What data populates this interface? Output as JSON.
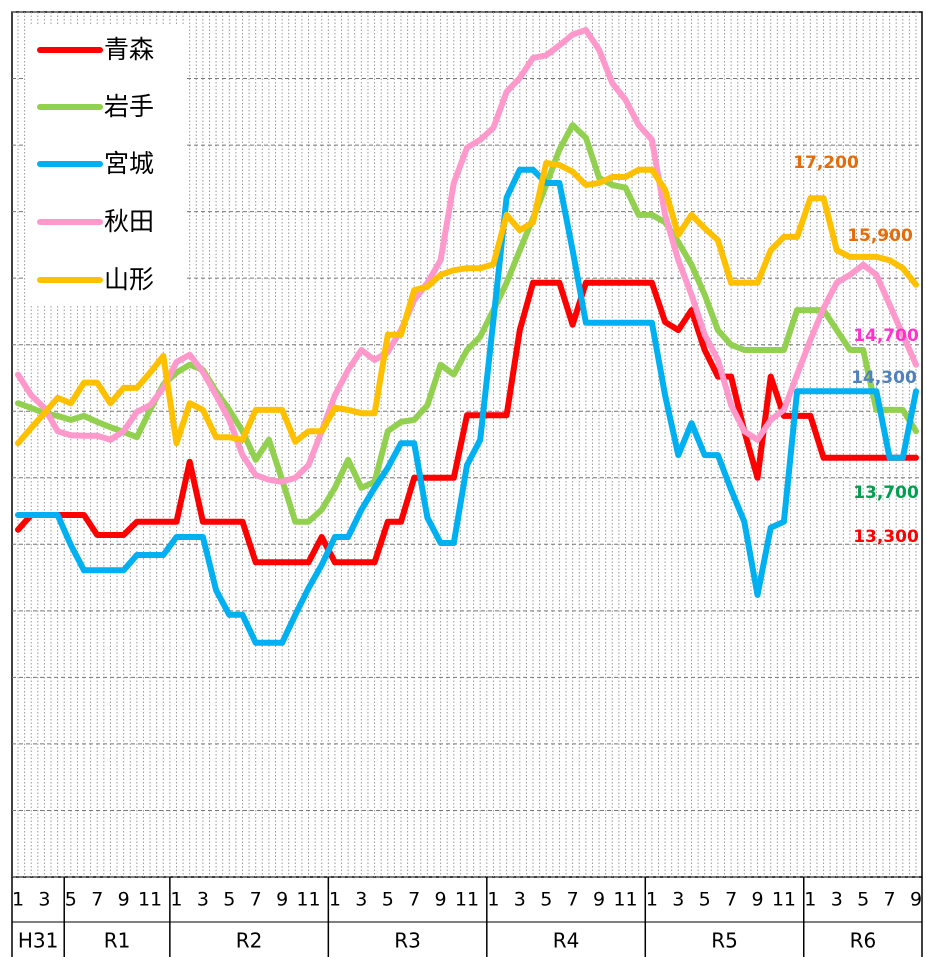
{
  "chart_data": {
    "type": "line",
    "categories": [
      "1",
      null,
      "3",
      null,
      "5",
      null,
      "7",
      null,
      "9",
      null,
      "11",
      null,
      "1",
      null,
      "3",
      null,
      "5",
      null,
      "7",
      null,
      "9",
      null,
      "11",
      null,
      "1",
      null,
      "3",
      null,
      "5",
      null,
      "7",
      null,
      "9",
      null,
      "11",
      null,
      "1",
      null,
      "3",
      null,
      "5",
      null,
      "7",
      null,
      "9",
      null,
      "11",
      null,
      "1",
      null,
      "3",
      null,
      "5",
      null,
      "7",
      null,
      "9",
      null,
      "11",
      null,
      "1",
      null,
      "3",
      null,
      "5",
      null,
      "7",
      null,
      "9"
    ],
    "eras": [
      {
        "label": "H31",
        "months": 4
      },
      {
        "label": "R1",
        "months": 8
      },
      {
        "label": "R2",
        "months": 12
      },
      {
        "label": "R3",
        "months": 12
      },
      {
        "label": "R4",
        "months": 12
      },
      {
        "label": "R5",
        "months": 12
      },
      {
        "label": "R6",
        "months": 9
      }
    ],
    "ylim": [
      7000,
      20000
    ],
    "yticks": [
      7000,
      8000,
      9000,
      10000,
      11000,
      12000,
      13000,
      14000,
      15000,
      16000,
      17000,
      18000,
      19000,
      20000
    ],
    "grid": true,
    "legend": "upper left",
    "series": [
      {
        "name": "青森",
        "color": "#ff0000",
        "values": [
          12220,
          12440,
          12440,
          12440,
          12440,
          12440,
          12140,
          12140,
          12140,
          12340,
          12340,
          12340,
          12340,
          13240,
          12340,
          12340,
          12340,
          12340,
          11730,
          11730,
          11730,
          11730,
          11730,
          12110,
          11730,
          11730,
          11730,
          11730,
          12340,
          12340,
          13000,
          13000,
          13000,
          13000,
          13940,
          13940,
          13940,
          13940,
          15220,
          15930,
          15930,
          15930,
          15300,
          15930,
          15930,
          15930,
          15930,
          15930,
          15930,
          15340,
          15220,
          15520,
          14920,
          14520,
          14520,
          13700,
          13000,
          14520,
          13930,
          13930,
          13930,
          13300,
          13300,
          13300,
          13300,
          13300,
          13300,
          13300,
          13300
        ]
      },
      {
        "name": "岩手",
        "color": "#92d050",
        "values": [
          14120,
          14050,
          13970,
          13930,
          13870,
          13930,
          13840,
          13760,
          13690,
          13610,
          14020,
          14400,
          14580,
          14700,
          14620,
          14300,
          14020,
          13700,
          13270,
          13570,
          12970,
          12340,
          12340,
          12520,
          12850,
          13270,
          12850,
          12940,
          13700,
          13840,
          13870,
          14090,
          14700,
          14550,
          14920,
          15120,
          15520,
          15930,
          16420,
          16900,
          17400,
          17930,
          18300,
          18110,
          17510,
          17400,
          17360,
          16950,
          16950,
          16840,
          16540,
          16200,
          15750,
          15220,
          15000,
          14920,
          14920,
          14920,
          14920,
          15520,
          15520,
          15520,
          15220,
          14920,
          14920,
          14020,
          14020,
          14020,
          13700
        ]
      },
      {
        "name": "宮城",
        "color": "#00b0f0",
        "values": [
          12440,
          12440,
          12440,
          12440,
          11990,
          11610,
          11610,
          11610,
          11610,
          11840,
          11840,
          11840,
          12110,
          12110,
          12110,
          11310,
          10940,
          10940,
          10520,
          10520,
          10520,
          10940,
          11340,
          11690,
          12110,
          12110,
          12520,
          12850,
          13150,
          13520,
          13520,
          12400,
          12020,
          12020,
          13190,
          13570,
          15370,
          17210,
          17630,
          17630,
          17430,
          17430,
          16420,
          15330,
          15330,
          15330,
          15330,
          15330,
          15330,
          14240,
          13340,
          13820,
          13340,
          13340,
          12820,
          12340,
          11240,
          12250,
          12340,
          14300,
          14300,
          14300,
          14300,
          14300,
          14300,
          14300,
          13300,
          13300,
          14300
        ]
      },
      {
        "name": "秋田",
        "color": "#ff99cc",
        "values": [
          14550,
          14240,
          14050,
          13700,
          13640,
          13630,
          13630,
          13570,
          13700,
          13990,
          14090,
          14350,
          14740,
          14850,
          14590,
          14240,
          13870,
          13340,
          13040,
          12970,
          12940,
          13000,
          13190,
          13700,
          14240,
          14620,
          14920,
          14770,
          14890,
          15220,
          15670,
          15930,
          16270,
          17430,
          17960,
          18080,
          18260,
          18800,
          19010,
          19310,
          19350,
          19500,
          19660,
          19730,
          19430,
          18930,
          18680,
          18300,
          18080,
          16950,
          16270,
          15750,
          15150,
          14770,
          14090,
          13700,
          13570,
          13870,
          14020,
          14550,
          15070,
          15550,
          15930,
          16050,
          16200,
          16050,
          15600,
          15150,
          14700
        ]
      },
      {
        "name": "山形",
        "color": "#ffc000",
        "values": [
          13520,
          13750,
          13970,
          14200,
          14120,
          14430,
          14430,
          14120,
          14350,
          14350,
          14580,
          14830,
          13520,
          14120,
          14020,
          13610,
          13610,
          13570,
          14020,
          14020,
          14020,
          13540,
          13700,
          13700,
          14050,
          14020,
          13970,
          13970,
          15150,
          15150,
          15820,
          15870,
          16050,
          16120,
          16150,
          16150,
          16210,
          16950,
          16720,
          16840,
          17730,
          17700,
          17600,
          17400,
          17430,
          17520,
          17520,
          17630,
          17630,
          17330,
          16650,
          16950,
          16750,
          16570,
          15930,
          15930,
          15930,
          16420,
          16620,
          16620,
          17200,
          17200,
          16420,
          16320,
          16320,
          16320,
          16270,
          16150,
          15900
        ]
      }
    ],
    "annotations": [
      {
        "text": "17,200",
        "color": "#e46c0a"
      },
      {
        "text": "15,900",
        "color": "#e46c0a"
      },
      {
        "text": "14,700",
        "color": "#ff33cc"
      },
      {
        "text": "14,300",
        "color": "#4f81bd"
      },
      {
        "text": "13,700",
        "color": "#00a050"
      },
      {
        "text": "13,300",
        "color": "#ff0000"
      }
    ]
  }
}
